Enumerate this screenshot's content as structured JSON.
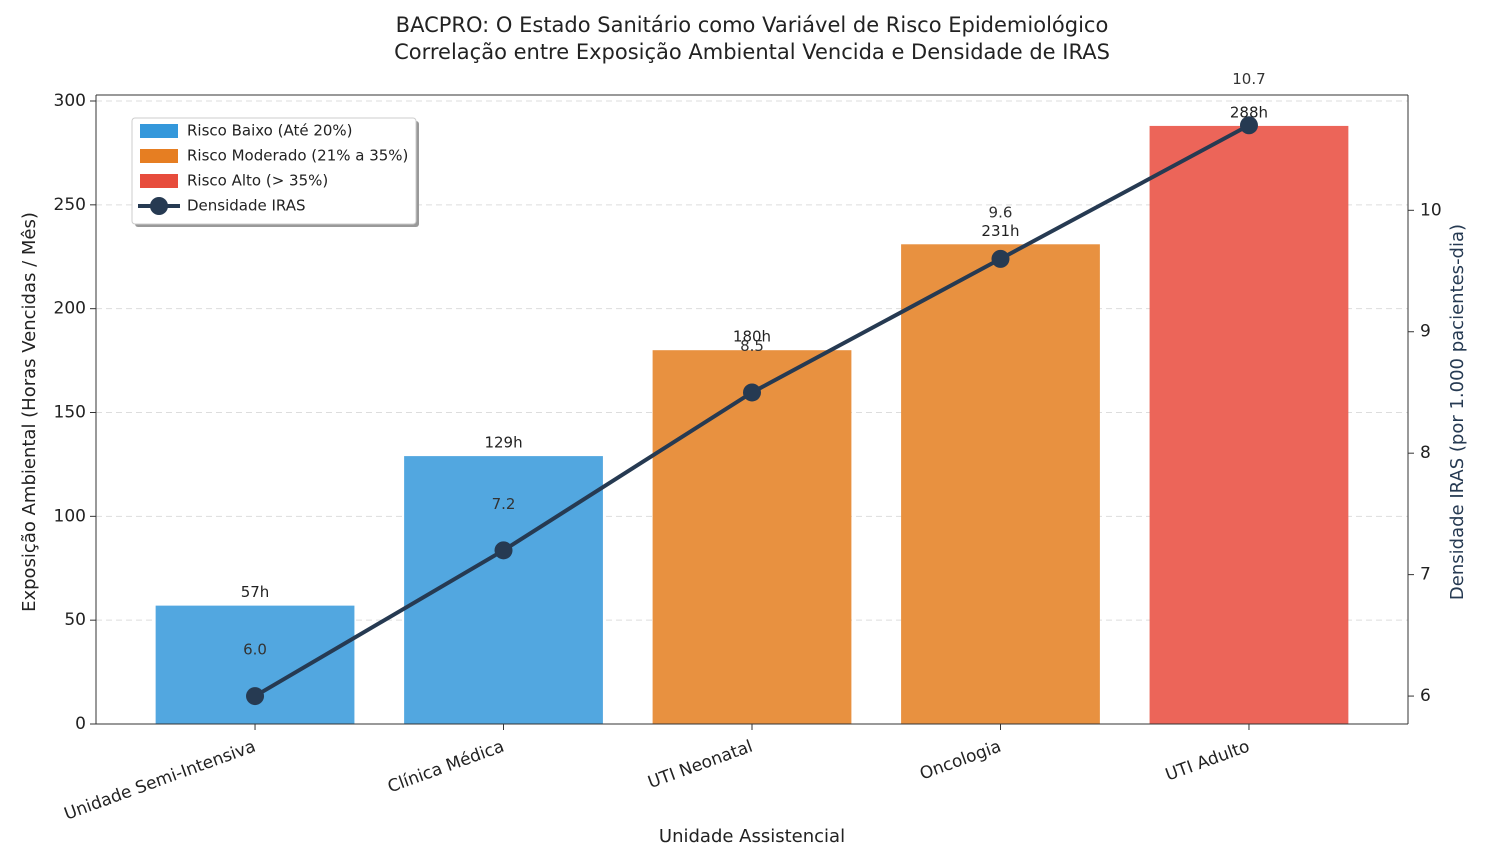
{
  "chart_data": {
    "type": "combo",
    "title": "BACPRO: O Estado Sanitário como Variável de Risco Epidemiológico",
    "subtitle": "Correlação entre Exposição Ambiental Vencida e Densidade de IRAS",
    "x_label": "Unidade Assistencial",
    "y_label": "Exposição Ambiental (Horas Vencidas / Mês)",
    "y2_label": "Densidade IRAS (por 1.000 pacientes-dia)",
    "categories": [
      "Unidade Semi-Intensiva",
      "Clínica Médica",
      "UTI Neonatal",
      "Oncologia",
      "UTI Adulto"
    ],
    "series": [
      {
        "type": "bar",
        "values": [
          57,
          129,
          180,
          231,
          288
        ],
        "value_labels": [
          "57h",
          "129h",
          "180h",
          "231h",
          "288h"
        ],
        "colors": [
          "#52a7e0",
          "#52a7e0",
          "#e89140",
          "#e89140",
          "#ec6559"
        ]
      },
      {
        "type": "line",
        "name": "Densidade IRAS",
        "color": "#263a52",
        "axis": "y2",
        "values": [
          6.0,
          7.2,
          8.5,
          9.6,
          10.7
        ],
        "value_labels": [
          "6.0",
          "7.2",
          "8.5",
          "9.6",
          "10.7"
        ]
      }
    ],
    "risk_legend": [
      {
        "name": "Risco Baixo (Até 20%)",
        "color": "#3498db"
      },
      {
        "name": "Risco Moderado (21% a 35%)",
        "color": "#e67e22"
      },
      {
        "name": "Risco Alto (> 35%)",
        "color": "#e74c3c"
      }
    ],
    "ylim": [
      0,
      300
    ],
    "yticks": [
      0,
      50,
      100,
      150,
      200,
      250,
      300
    ],
    "y2lim": [
      5.77,
      10.9
    ],
    "y2ticks": [
      6,
      7,
      8,
      9,
      10
    ],
    "grid": true,
    "legend": "upper left"
  }
}
